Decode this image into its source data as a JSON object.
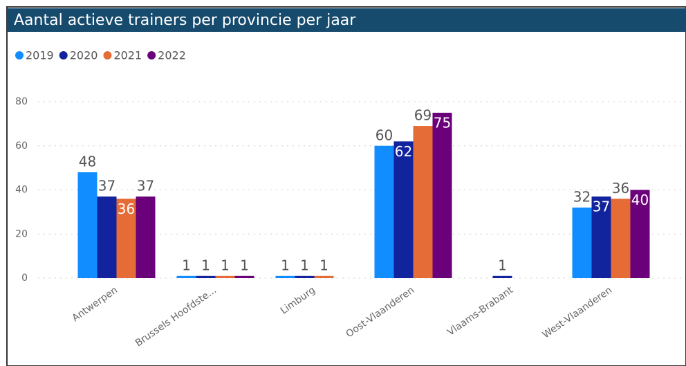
{
  "chart_data": {
    "type": "bar",
    "title": "Aantal actieve trainers per provincie per jaar",
    "categories": [
      "Antwerpen",
      "Brussels Hoofdste...",
      "Limburg",
      "Oost-Vlaanderen",
      "Vlaams-Brabant",
      "West-Vlaanderen"
    ],
    "series": [
      {
        "name": "2019",
        "color": "#118DFF",
        "values": [
          48,
          1,
          1,
          60,
          null,
          32
        ]
      },
      {
        "name": "2020",
        "color": "#12239E",
        "values": [
          37,
          1,
          1,
          62,
          1,
          37
        ]
      },
      {
        "name": "2021",
        "color": "#E66C37",
        "values": [
          36,
          1,
          1,
          69,
          null,
          36
        ]
      },
      {
        "name": "2022",
        "color": "#6B007B",
        "values": [
          37,
          1,
          null,
          75,
          null,
          40
        ]
      }
    ],
    "ylim": [
      0,
      80
    ],
    "yticks": [
      0,
      20,
      40,
      60,
      80
    ],
    "grid": true,
    "legend": "top-left"
  }
}
